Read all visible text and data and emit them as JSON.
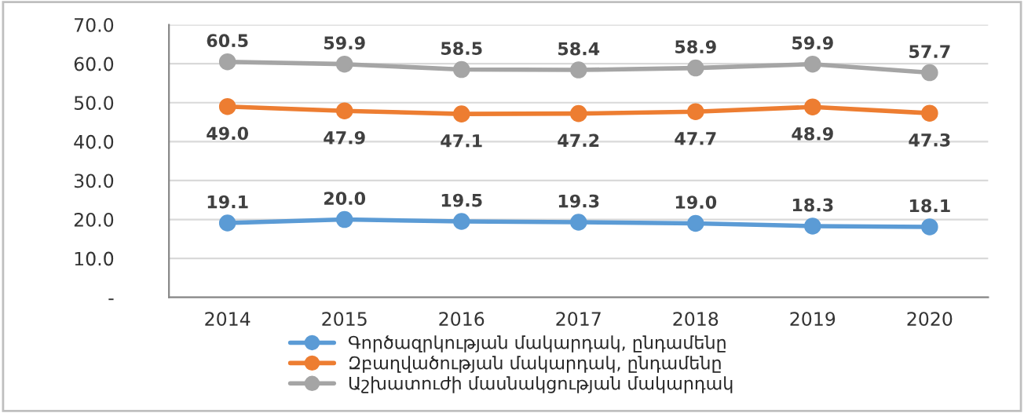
{
  "chart_data": {
    "type": "line",
    "categories": [
      "2014",
      "2015",
      "2016",
      "2017",
      "2018",
      "2019",
      "2020"
    ],
    "series": [
      {
        "name": "Գործազրկության մակարդակ, ընդամենը",
        "color": "#5b9bd5",
        "values": [
          19.1,
          20.0,
          19.5,
          19.3,
          19.0,
          18.3,
          18.1
        ],
        "value_labels": [
          "19.1",
          "20.0",
          "19.5",
          "19.3",
          "19.0",
          "18.3",
          "18.1"
        ]
      },
      {
        "name": "Զբաղվածության մակարդակ, ընդամենը",
        "color": "#ed7d31",
        "values": [
          49.0,
          47.9,
          47.1,
          47.2,
          47.7,
          48.9,
          47.3
        ],
        "value_labels": [
          "49.0",
          "47.9",
          "47.1",
          "47.2",
          "47.7",
          "48.9",
          "47.3"
        ]
      },
      {
        "name": "Աշխատուժի մասնակցության մակարդակ",
        "color": "#a5a5a5",
        "values": [
          60.5,
          59.9,
          58.5,
          58.4,
          58.9,
          59.9,
          57.7
        ],
        "value_labels": [
          "60.5",
          "59.9",
          "58.5",
          "58.4",
          "58.9",
          "59.9",
          "57.7"
        ]
      }
    ],
    "ylim": [
      0,
      70
    ],
    "yticks": [
      {
        "value": 0,
        "label": "-"
      },
      {
        "value": 10,
        "label": "10.0"
      },
      {
        "value": 20,
        "label": "20.0"
      },
      {
        "value": 30,
        "label": "30.0"
      },
      {
        "value": 40,
        "label": "40.0"
      },
      {
        "value": 50,
        "label": "50.0"
      },
      {
        "value": 60,
        "label": "60.0"
      },
      {
        "value": 70,
        "label": "70.0"
      }
    ],
    "grid": "y",
    "legend": "bottom",
    "marker": "circle",
    "line_style": "solid"
  }
}
